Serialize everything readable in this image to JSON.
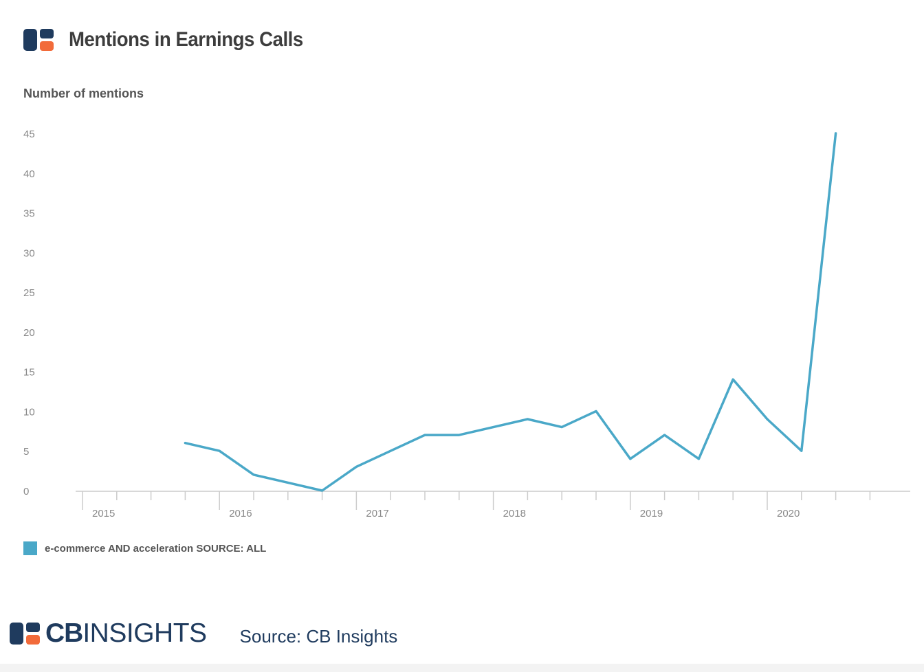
{
  "header": {
    "title": "Mentions in Earnings Calls",
    "logo_icon": "cb-insights-logo-icon"
  },
  "colors": {
    "series": "#4aa8c8",
    "brand_navy": "#1f3b5e",
    "brand_orange": "#f26b3a",
    "axis": "#cccccc",
    "tick_text": "#888888"
  },
  "chart_data": {
    "type": "line",
    "ylabel": "Number of mentions",
    "xlabel": "",
    "title": "Mentions in Earnings Calls",
    "ylim": [
      0,
      45
    ],
    "yticks": [
      0,
      5,
      10,
      15,
      20,
      25,
      30,
      35,
      40,
      45
    ],
    "xlim": [
      "2014-10",
      "2020-10"
    ],
    "xticks": [
      "2015",
      "2016",
      "2017",
      "2018",
      "2019",
      "2020"
    ],
    "grid": false,
    "legend_position": "bottom-left",
    "series": [
      {
        "name": "e-commerce AND acceleration SOURCE: ALL",
        "color": "#4aa8c8",
        "x": [
          "2015-Q3",
          "2015-Q4",
          "2016-Q1",
          "2016-Q2",
          "2016-Q3",
          "2016-Q4",
          "2017-Q1",
          "2017-Q2",
          "2017-Q3",
          "2017-Q4",
          "2018-Q1",
          "2018-Q2",
          "2018-Q3",
          "2018-Q4",
          "2019-Q1",
          "2019-Q2",
          "2019-Q3",
          "2019-Q4",
          "2020-Q1",
          "2020-Q2"
        ],
        "values": [
          6,
          5,
          2,
          1,
          0,
          3,
          5,
          7,
          7,
          8,
          9,
          8,
          10,
          4,
          7,
          4,
          14,
          9,
          5,
          45
        ]
      }
    ]
  },
  "footer": {
    "brand_cb": "CB",
    "brand_insights": "INSIGHTS",
    "brand_icon": "cb-insights-logo-icon",
    "source": "Source: CB Insights"
  }
}
